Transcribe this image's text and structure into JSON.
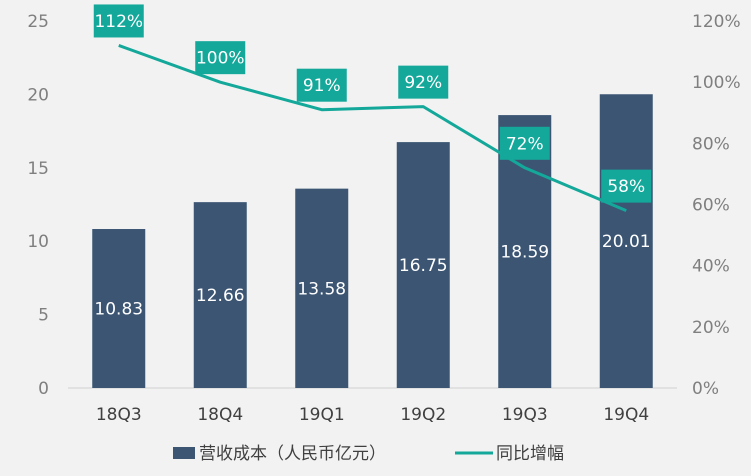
{
  "chart_data": {
    "type": "bar",
    "categories": [
      "18Q3",
      "18Q4",
      "19Q1",
      "19Q2",
      "19Q3",
      "19Q4"
    ],
    "series": [
      {
        "name": "营收成本（人民币亿元）",
        "type": "bar",
        "axis": "left",
        "values": [
          10.83,
          12.66,
          13.58,
          16.75,
          18.59,
          20.01
        ],
        "labels": [
          "10.83",
          "12.66",
          "13.58",
          "16.75",
          "18.59",
          "20.01"
        ]
      },
      {
        "name": "同比增幅",
        "type": "line",
        "axis": "right",
        "values": [
          112,
          100,
          91,
          92,
          72,
          58
        ],
        "labels": [
          "112%",
          "100%",
          "91%",
          "92%",
          "72%",
          "58%"
        ]
      }
    ],
    "y_left": {
      "min": 0,
      "max": 25,
      "ticks": [
        "0",
        "5",
        "10",
        "15",
        "20",
        "25"
      ]
    },
    "y_right": {
      "min": 0,
      "max": 120,
      "ticks": [
        "0%",
        "20%",
        "40%",
        "60%",
        "80%",
        "100%",
        "120%"
      ]
    },
    "legend": "bottom",
    "grid": false,
    "colors": {
      "bar": "#3b5573",
      "line": "#14a89a",
      "label_box": "#14a89a"
    }
  }
}
